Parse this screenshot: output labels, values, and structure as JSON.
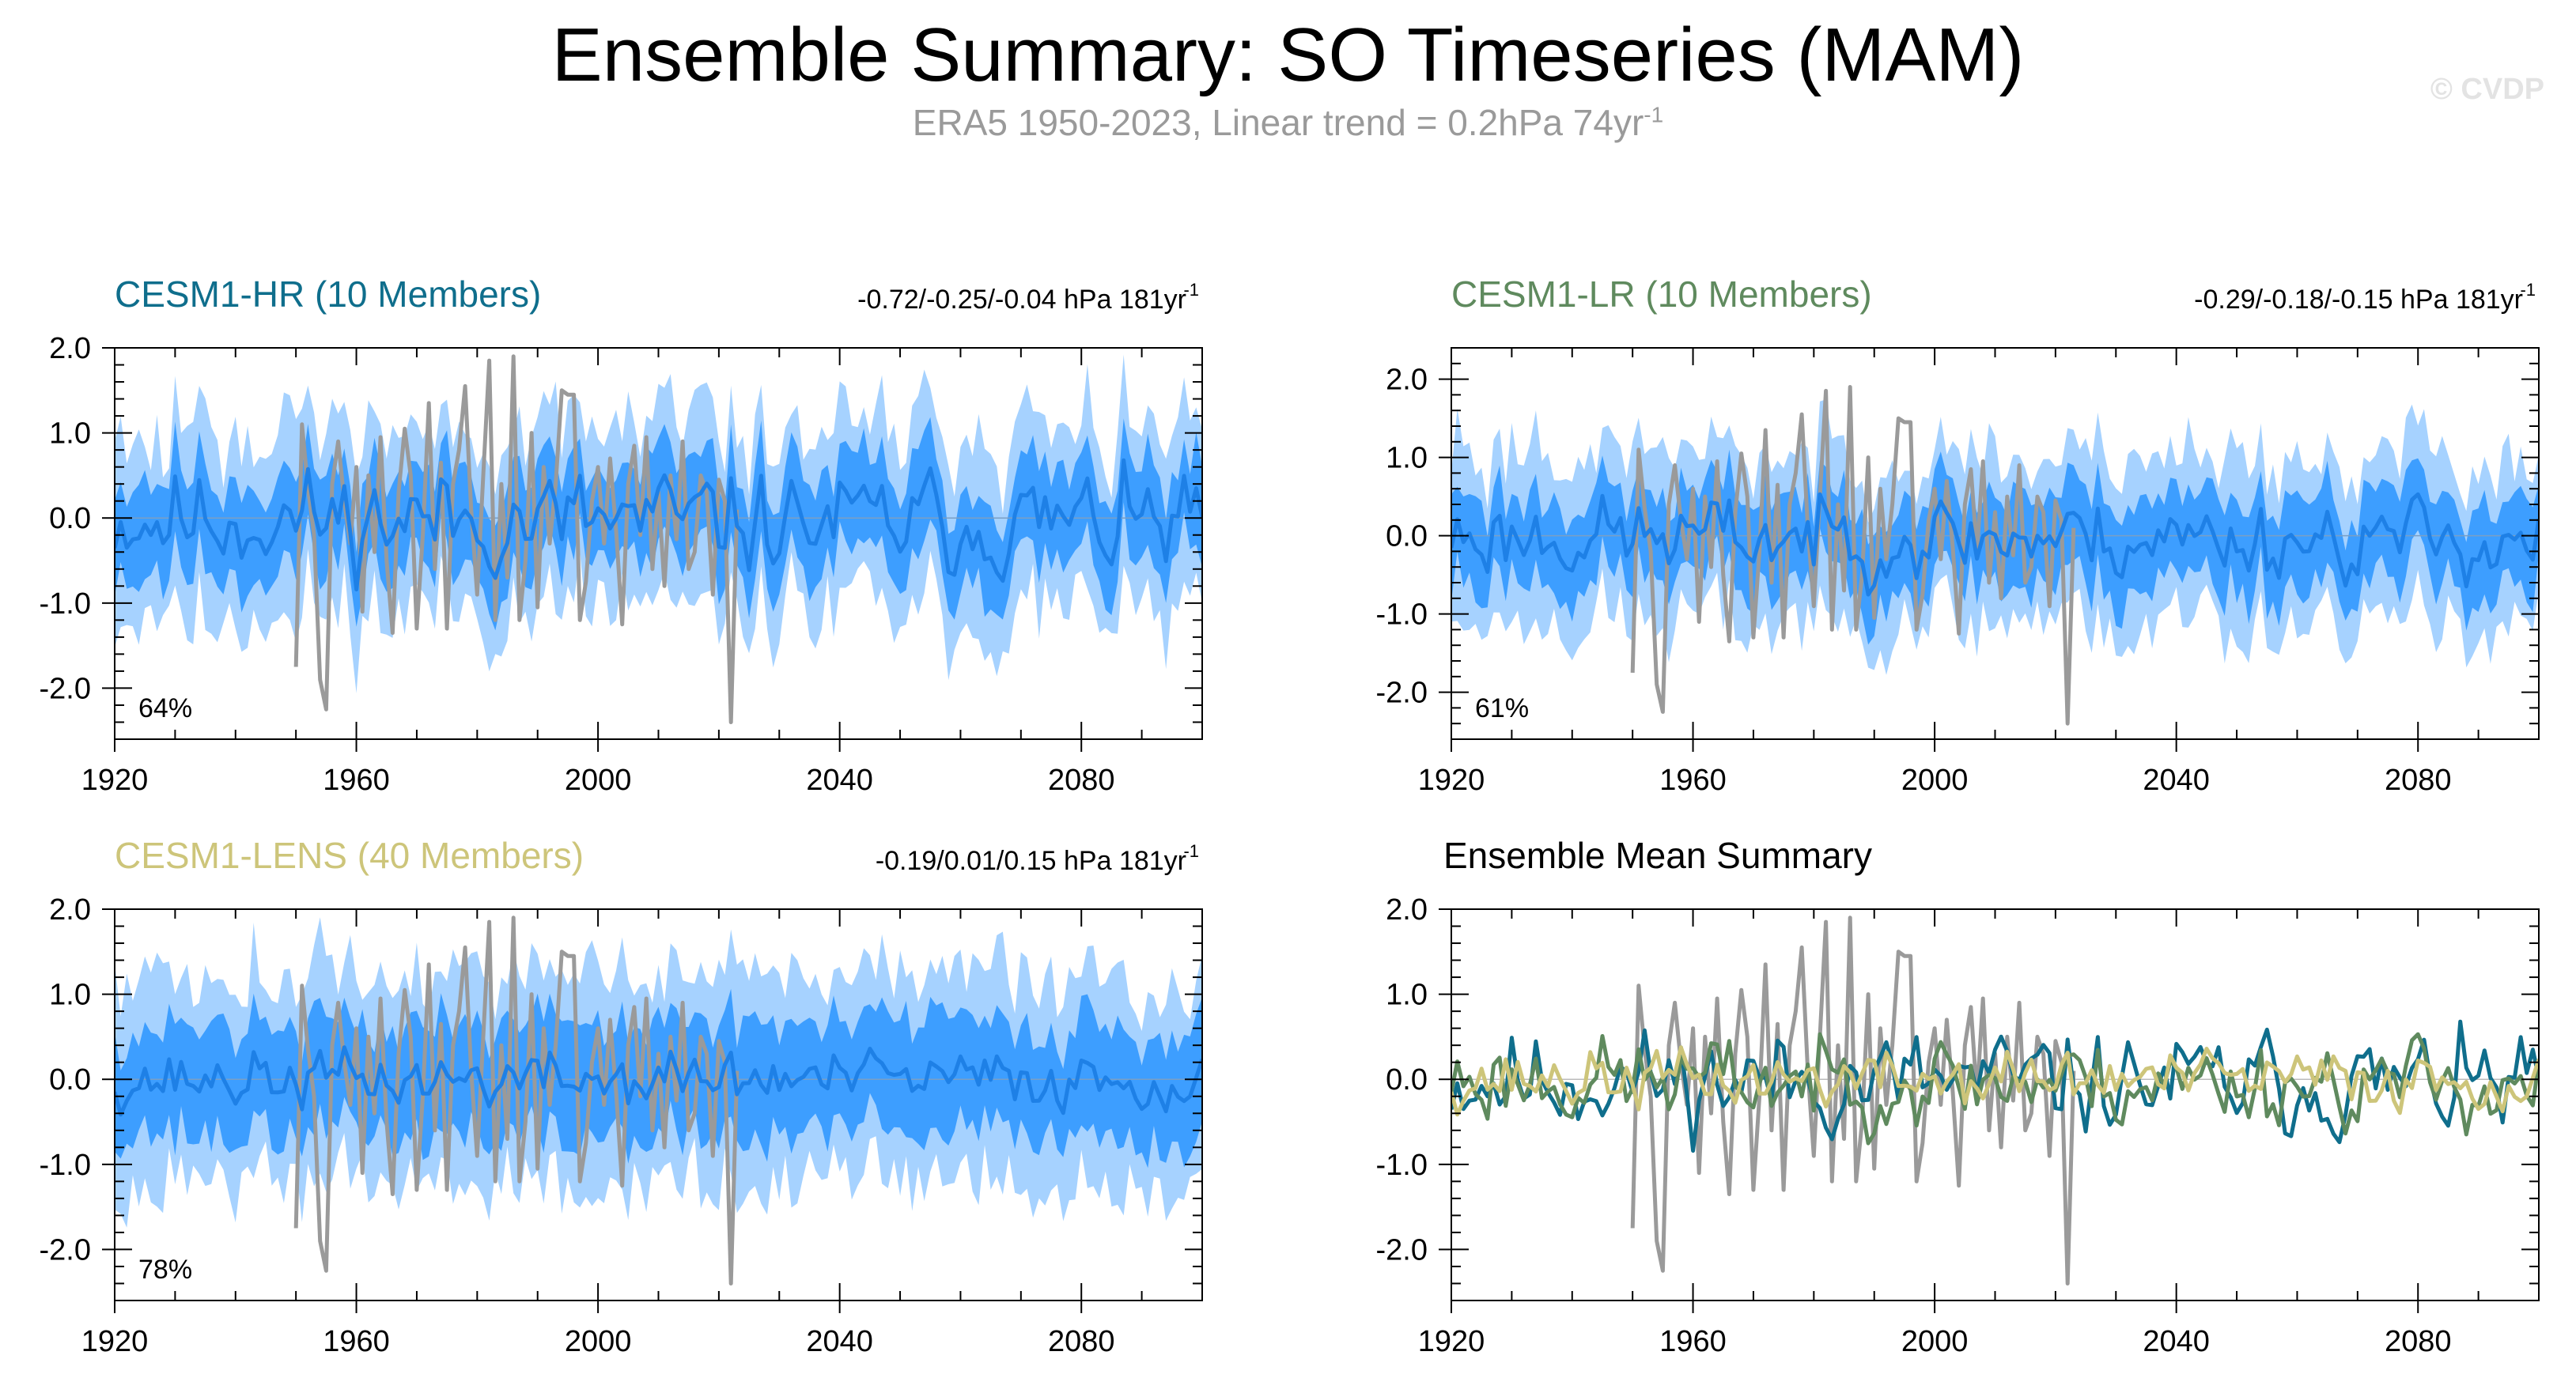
{
  "title": "Ensemble Summary: SO Timeseries (MAM)",
  "subtitle": {
    "text": "ERA5 1950-2023, Linear trend = 0.2hPa 74yr",
    "superscript": "-1"
  },
  "watermark": "© CVDP",
  "colors": {
    "outer_band": "#a6d2ff",
    "inner_band": "#3d9eff",
    "ensemble_mean": "#1e80e6",
    "observations": "#9a9a9a",
    "cesm1_hr": "#0f6e8c",
    "cesm1_lr": "#5f8a5e",
    "cesm1_lens": "#cdc57a"
  },
  "chart_data": [
    {
      "id": "cesm1-hr",
      "type": "area",
      "title": "CESM1-HR (10 Members)",
      "title_color": "#0f6e8c",
      "trend_label": "-0.72/-0.25/-0.04 hPa 181yr",
      "trend_sup": "-1",
      "percent_label": "64%",
      "xlim": [
        1920,
        2100
      ],
      "ylim": [
        -2.6,
        2.0
      ],
      "x_ticks": [
        "1920",
        "1960",
        "2000",
        "2040",
        "2080"
      ],
      "y_ticks": [
        "2.0",
        "1.0",
        "0.0",
        "-1.0",
        "-2.0"
      ],
      "series_descriptions": [
        "outer spread band",
        "inner spread band",
        "ensemble mean",
        "ERA5 observations"
      ],
      "seed": 11,
      "mean_amp": 0.28,
      "inner": 0.55,
      "outer": 1.05,
      "drift": -0.05
    },
    {
      "id": "cesm1-lr",
      "type": "area",
      "title": "CESM1-LR (10 Members)",
      "title_color": "#5f8a5e",
      "trend_label": "-0.29/-0.18/-0.15 hPa 181yr",
      "trend_sup": "-1",
      "percent_label": "61%",
      "xlim": [
        1920,
        2100
      ],
      "ylim": [
        -2.6,
        2.4
      ],
      "x_ticks": [
        "1920",
        "1960",
        "2000",
        "2040",
        "2080"
      ],
      "y_ticks": [
        "2.0",
        "1.0",
        "0.0",
        "-1.0",
        "-2.0"
      ],
      "series_descriptions": [
        "outer spread band",
        "inner spread band",
        "ensemble mean",
        "ERA5 observations"
      ],
      "seed": 23,
      "mean_amp": 0.24,
      "inner": 0.55,
      "outer": 1.05,
      "drift": -0.03
    },
    {
      "id": "cesm1-lens",
      "type": "area",
      "title": "CESM1-LENS (40 Members)",
      "title_color": "#cdc57a",
      "trend_label": "-0.19/0.01/0.15 hPa 181yr",
      "trend_sup": "-1",
      "percent_label": "78%",
      "xlim": [
        1920,
        2100
      ],
      "ylim": [
        -2.6,
        2.0
      ],
      "x_ticks": [
        "1920",
        "1960",
        "2000",
        "2040",
        "2080"
      ],
      "y_ticks": [
        "2.0",
        "1.0",
        "0.0",
        "-1.0",
        "-2.0"
      ],
      "series_descriptions": [
        "outer spread band",
        "inner spread band",
        "ensemble mean",
        "ERA5 observations"
      ],
      "seed": 37,
      "mean_amp": 0.16,
      "inner": 0.65,
      "outer": 1.2,
      "drift": 0.0
    },
    {
      "id": "ensemble-mean-summary",
      "type": "line",
      "title": "Ensemble Mean Summary",
      "title_color": "#000000",
      "xlim": [
        1920,
        2100
      ],
      "ylim": [
        -2.6,
        2.0
      ],
      "x_ticks": [
        "1920",
        "1960",
        "2000",
        "2040",
        "2080"
      ],
      "y_ticks": [
        "2.0",
        "1.0",
        "0.0",
        "-1.0",
        "-2.0"
      ],
      "series": [
        {
          "name": "ERA5 observations",
          "color_key": "observations"
        },
        {
          "name": "CESM1-HR ensemble mean",
          "color_key": "cesm1_hr",
          "seed": 11
        },
        {
          "name": "CESM1-LR ensemble mean",
          "color_key": "cesm1_lr",
          "seed": 23
        },
        {
          "name": "CESM1-LENS ensemble mean",
          "color_key": "cesm1_lens",
          "seed": 37
        }
      ]
    }
  ],
  "observations": {
    "name": "ERA5 1950-2023",
    "years": [
      1950,
      1951,
      1952,
      1953,
      1954,
      1955,
      1956,
      1957,
      1958,
      1959,
      1960,
      1961,
      1962,
      1963,
      1964,
      1965,
      1966,
      1967,
      1968,
      1969,
      1970,
      1971,
      1972,
      1973,
      1974,
      1975,
      1976,
      1977,
      1978,
      1979,
      1980,
      1981,
      1982,
      1983,
      1984,
      1985,
      1986,
      1987,
      1988,
      1989,
      1990,
      1991,
      1992,
      1993,
      1994,
      1995,
      1996,
      1997,
      1998,
      1999,
      2000,
      2001,
      2002,
      2003,
      2004,
      2005,
      2006,
      2007,
      2008,
      2009,
      2010,
      2011,
      2012,
      2013,
      2014,
      2015,
      2016,
      2017,
      2018,
      2019,
      2020,
      2021,
      2022,
      2023
    ],
    "values": [
      -1.75,
      1.1,
      0.35,
      -0.2,
      -1.9,
      -2.25,
      0.4,
      0.9,
      0.2,
      -0.3,
      0.6,
      -1.1,
      0.5,
      -0.4,
      0.95,
      -0.5,
      -1.35,
      0.3,
      1.05,
      0.5,
      -1.3,
      -0.2,
      1.35,
      -0.6,
      0.65,
      -1.3,
      0.4,
      0.8,
      1.55,
      0.1,
      -0.9,
      0.5,
      1.85,
      -1.2,
      0.4,
      -0.7,
      1.9,
      -1.2,
      -0.5,
      1.0,
      -1.05,
      0.6,
      -0.3,
      0.4,
      1.5,
      1.45,
      1.45,
      -1.2,
      -0.75,
      0.2,
      0.6,
      -0.3,
      0.7,
      -0.15,
      -1.25,
      0.4,
      0.85,
      -0.2,
      0.95,
      -0.6,
      0.3,
      -0.8,
      0.5,
      -0.25,
      0.9,
      -0.6,
      -0.4,
      0.5,
      0.3,
      -0.9,
      0.45,
      0.2,
      -2.4,
      0.1
    ]
  }
}
